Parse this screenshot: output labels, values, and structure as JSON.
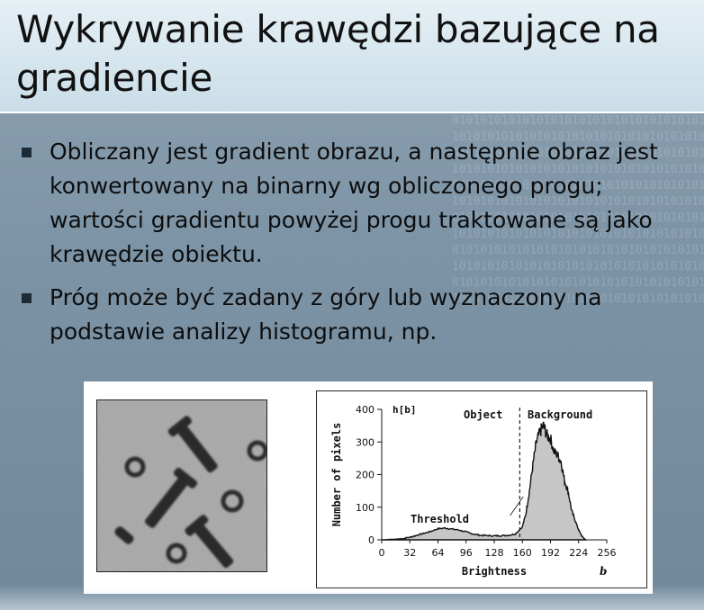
{
  "slide": {
    "title": "Wykrywanie krawędzi bazujące na gradiencie",
    "bullets": [
      "Obliczany jest gradient obrazu, a następnie obraz jest konwertowany na binarny wg obliczonego progu; wartości gradientu powyżej progu traktowane są jako krawędzie obiektu.",
      "Próg może być zadany z góry lub wyznaczony na podstawie analizy histogramu, np."
    ],
    "background_binary": "01010101010101010101"
  },
  "colors": {
    "title_bg": "#d6e6ee",
    "slide_bg": "#7f96a8",
    "histogram_fill": "#c8c8c8"
  },
  "chart_data": {
    "type": "area",
    "title": "h[b]",
    "xlabel": "Brightness",
    "ylabel": "Number of pixels",
    "x_variable": "b",
    "xlim": [
      0,
      256
    ],
    "ylim": [
      0,
      400
    ],
    "xticks": [
      0,
      32,
      64,
      96,
      128,
      160,
      192,
      224,
      256
    ],
    "yticks": [
      0,
      100,
      200,
      300,
      400
    ],
    "threshold": 157,
    "annotations": {
      "object": "Object",
      "background": "Background",
      "threshold": "Threshold"
    },
    "x": [
      0,
      8,
      16,
      24,
      32,
      40,
      48,
      56,
      64,
      72,
      80,
      88,
      96,
      104,
      112,
      120,
      128,
      136,
      144,
      152,
      160,
      164,
      168,
      172,
      176,
      180,
      184,
      188,
      192,
      196,
      200,
      204,
      208,
      212,
      216,
      220,
      224,
      228,
      232
    ],
    "y": [
      0,
      1,
      2,
      4,
      8,
      14,
      20,
      26,
      34,
      36,
      33,
      30,
      24,
      18,
      14,
      13,
      12,
      13,
      14,
      18,
      40,
      80,
      150,
      230,
      300,
      330,
      350,
      320,
      310,
      270,
      260,
      240,
      180,
      150,
      90,
      60,
      30,
      10,
      0
    ]
  }
}
